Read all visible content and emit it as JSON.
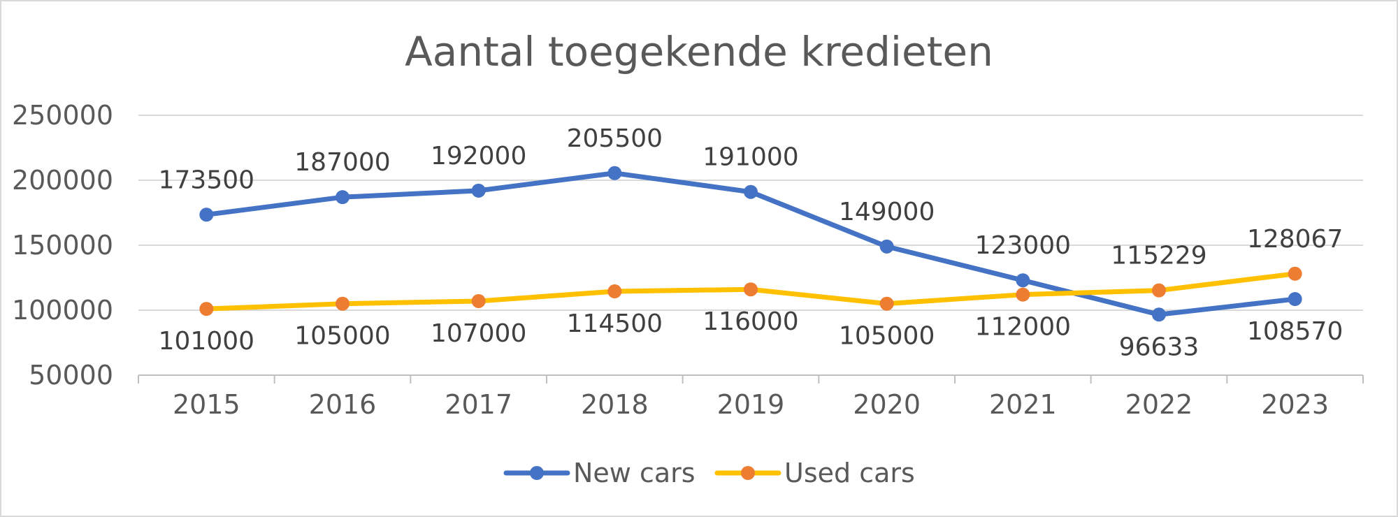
{
  "chart_data": {
    "type": "line",
    "title": "Aantal toegekende kredieten",
    "xlabel": "",
    "ylabel": "",
    "categories": [
      "2015",
      "2016",
      "2017",
      "2018",
      "2019",
      "2020",
      "2021",
      "2022",
      "2023"
    ],
    "ylim": [
      50000,
      250000
    ],
    "yticks": [
      "250000",
      "200000",
      "150000",
      "100000",
      "50000"
    ],
    "grid": true,
    "legend": "bottom-center",
    "series": [
      {
        "name": "New cars",
        "values": [
          173500,
          187000,
          192000,
          205500,
          191000,
          149000,
          123000,
          96633,
          108570
        ],
        "labels": [
          "173500",
          "187000",
          "192000",
          "205500",
          "191000",
          "149000",
          "123000",
          "96633",
          "108570"
        ],
        "line_color": "#4472C4",
        "marker_color": "#4472C4"
      },
      {
        "name": "Used cars",
        "values": [
          101000,
          105000,
          107000,
          114500,
          116000,
          105000,
          112000,
          115229,
          128067
        ],
        "labels": [
          "101000",
          "105000",
          "107000",
          "114500",
          "116000",
          "105000",
          "112000",
          "115229",
          "128067"
        ],
        "line_color": "#FFC000",
        "marker_color": "#ED7D31"
      }
    ],
    "gridline_color": "#d9d9d9",
    "axis_color": "#bfbfbf"
  }
}
